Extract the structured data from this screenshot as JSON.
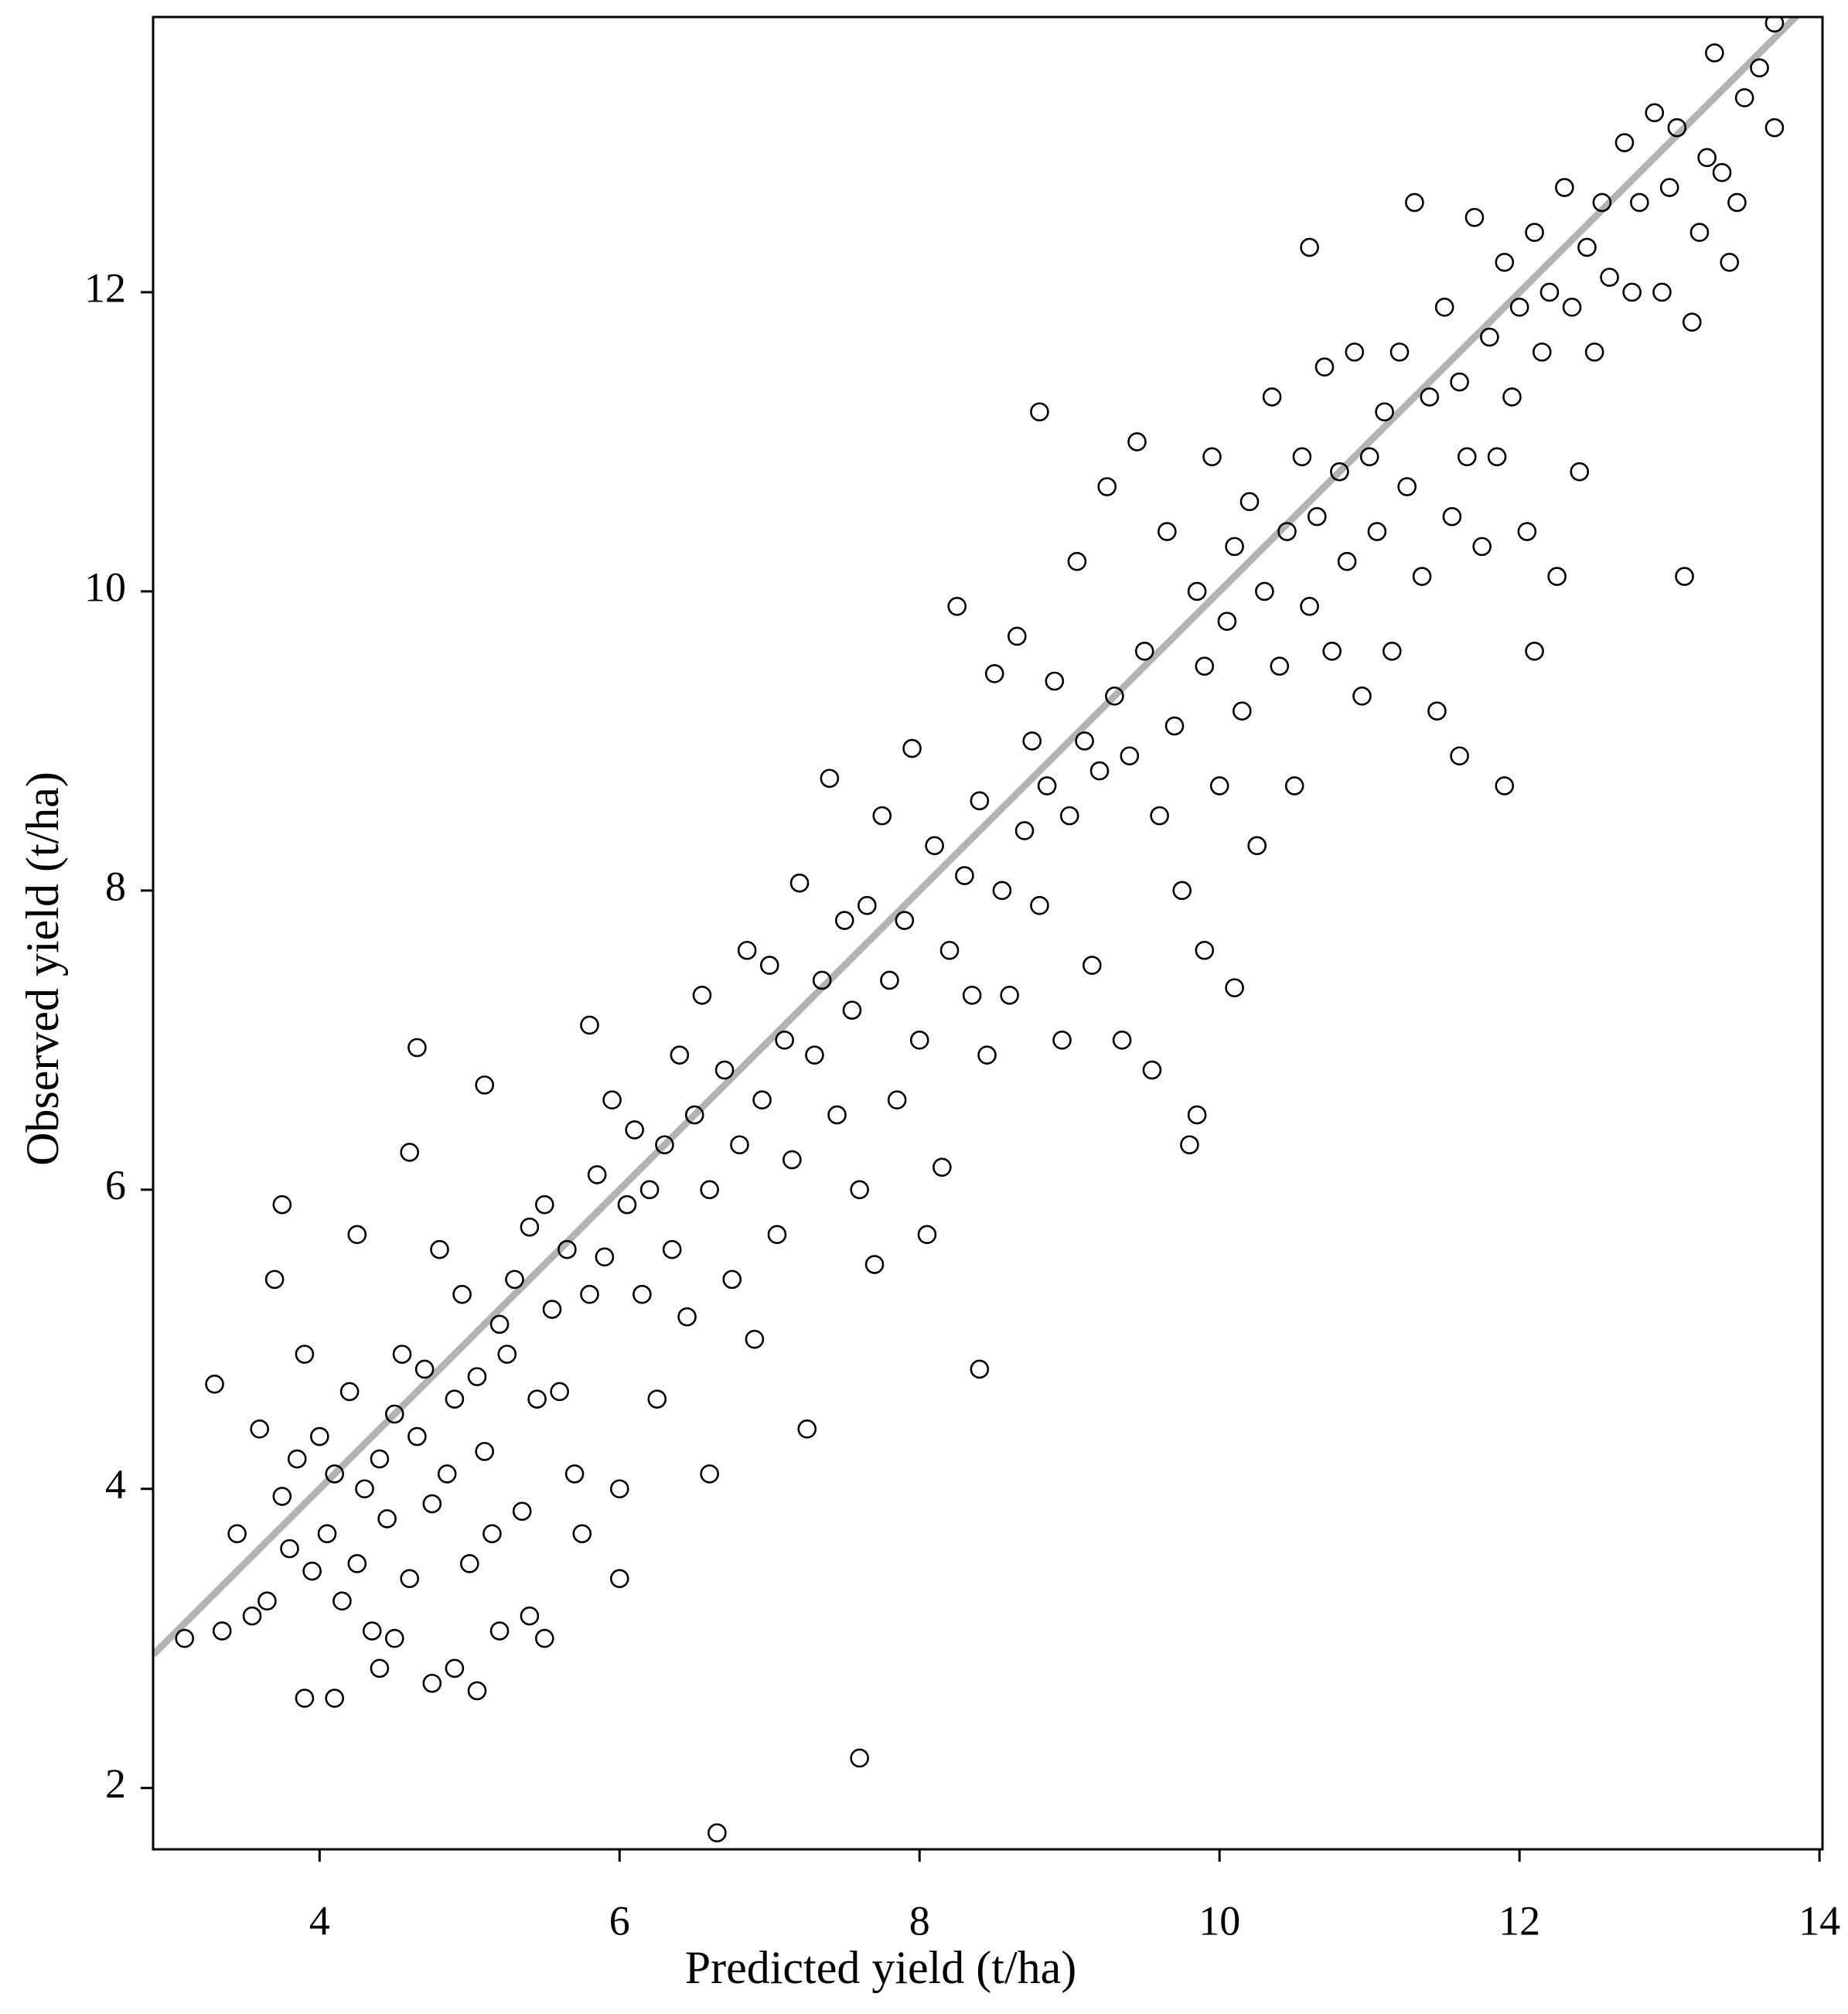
{
  "chart_data": {
    "type": "scatter",
    "x_label": "Predicted yield (t/ha)",
    "y_label": "Observed yield (t/ha)",
    "xlim": [
      2.89,
      14.02
    ],
    "ylim": [
      1.59,
      13.84
    ],
    "xticks": [
      4,
      6,
      8,
      10,
      12,
      14
    ],
    "yticks": [
      2,
      4,
      6,
      8,
      10,
      12
    ],
    "marker_color": "#000000",
    "fit_line": {
      "x": [
        2.89,
        14.02
      ],
      "y": [
        2.89,
        14.02
      ],
      "color": "#b3b3b3"
    },
    "x": [
      3.1,
      3.3,
      3.35,
      3.45,
      3.55,
      3.6,
      3.65,
      3.7,
      3.75,
      3.75,
      3.8,
      3.85,
      3.9,
      3.9,
      3.95,
      4.0,
      4.05,
      4.1,
      4.1,
      4.15,
      4.2,
      4.25,
      4.25,
      4.3,
      4.35,
      4.4,
      4.4,
      4.45,
      4.5,
      4.5,
      4.55,
      4.6,
      4.6,
      4.65,
      4.65,
      4.7,
      4.75,
      4.75,
      4.8,
      4.85,
      4.9,
      4.9,
      4.95,
      5.0,
      5.05,
      5.05,
      5.1,
      5.1,
      5.15,
      5.2,
      5.2,
      5.25,
      5.3,
      5.35,
      5.4,
      5.4,
      5.45,
      5.5,
      5.5,
      5.55,
      5.6,
      5.65,
      5.7,
      5.75,
      5.8,
      5.8,
      5.85,
      5.9,
      5.95,
      6.0,
      6.0,
      6.05,
      6.1,
      6.15,
      6.2,
      6.25,
      6.3,
      6.35,
      6.4,
      6.45,
      6.5,
      6.55,
      6.6,
      6.6,
      6.65,
      6.7,
      6.75,
      6.8,
      6.85,
      6.9,
      6.95,
      7.0,
      7.05,
      7.1,
      7.15,
      7.2,
      7.25,
      7.3,
      7.35,
      7.4,
      7.45,
      7.5,
      7.55,
      7.6,
      7.6,
      7.65,
      7.7,
      7.75,
      7.8,
      7.85,
      7.9,
      7.95,
      8.0,
      8.05,
      8.1,
      8.15,
      8.2,
      8.25,
      8.3,
      8.35,
      8.4,
      8.4,
      8.45,
      8.5,
      8.55,
      8.6,
      8.65,
      8.7,
      8.75,
      8.8,
      8.8,
      8.85,
      8.9,
      8.95,
      9.0,
      9.05,
      9.1,
      9.15,
      9.2,
      9.25,
      9.3,
      9.35,
      9.4,
      9.45,
      9.5,
      9.55,
      9.6,
      9.65,
      9.7,
      9.75,
      9.8,
      9.85,
      9.85,
      9.9,
      9.9,
      9.95,
      10.0,
      10.05,
      10.1,
      10.1,
      10.15,
      10.2,
      10.25,
      10.3,
      10.35,
      10.4,
      10.45,
      10.5,
      10.55,
      10.6,
      10.6,
      10.65,
      10.7,
      10.75,
      10.8,
      10.85,
      10.9,
      10.95,
      11.0,
      11.05,
      11.1,
      11.15,
      11.2,
      11.25,
      11.3,
      11.35,
      11.4,
      11.45,
      11.5,
      11.55,
      11.6,
      11.6,
      11.65,
      11.7,
      11.75,
      11.8,
      11.85,
      11.9,
      11.9,
      11.95,
      12.0,
      12.05,
      12.1,
      12.1,
      12.15,
      12.2,
      12.25,
      12.3,
      12.35,
      12.4,
      12.45,
      12.5,
      12.55,
      12.6,
      12.7,
      12.75,
      12.8,
      12.9,
      12.95,
      13.0,
      13.05,
      13.1,
      13.15,
      13.2,
      13.25,
      13.3,
      13.35,
      13.4,
      13.45,
      13.5,
      13.6,
      13.7,
      13.7
    ],
    "y": [
      3.0,
      4.7,
      3.05,
      3.7,
      3.15,
      4.4,
      3.25,
      5.4,
      5.9,
      3.95,
      3.6,
      4.2,
      2.6,
      4.9,
      3.45,
      4.35,
      3.7,
      2.6,
      4.1,
      3.25,
      4.65,
      3.5,
      5.7,
      4.0,
      3.05,
      2.8,
      4.2,
      3.8,
      4.5,
      3.0,
      4.9,
      6.25,
      3.4,
      6.95,
      4.35,
      4.8,
      2.7,
      3.9,
      5.6,
      4.1,
      2.8,
      4.6,
      5.3,
      3.5,
      2.65,
      4.75,
      6.7,
      4.25,
      3.7,
      5.1,
      3.05,
      4.9,
      5.4,
      3.85,
      5.75,
      3.15,
      4.6,
      5.9,
      3.0,
      5.2,
      4.65,
      5.6,
      4.1,
      3.7,
      7.1,
      5.3,
      6.1,
      5.55,
      6.6,
      3.4,
      4.0,
      5.9,
      6.4,
      5.3,
      6.0,
      4.6,
      6.3,
      5.6,
      6.9,
      5.15,
      6.5,
      7.3,
      4.1,
      6.0,
      1.7,
      6.8,
      5.4,
      6.3,
      7.6,
      5.0,
      6.6,
      7.5,
      5.7,
      7.0,
      6.2,
      8.05,
      4.4,
      6.9,
      7.4,
      8.75,
      6.5,
      7.8,
      7.2,
      2.2,
      6.0,
      7.9,
      5.5,
      8.5,
      7.4,
      6.6,
      7.8,
      8.95,
      7.0,
      5.7,
      8.3,
      6.15,
      7.6,
      9.9,
      8.1,
      7.3,
      4.8,
      8.6,
      6.9,
      9.45,
      8.0,
      7.3,
      9.7,
      8.4,
      9.0,
      11.2,
      7.9,
      8.7,
      9.4,
      7.0,
      8.5,
      10.2,
      9.0,
      7.5,
      8.8,
      10.7,
      9.3,
      7.0,
      8.9,
      11.0,
      9.6,
      6.8,
      8.5,
      10.4,
      9.1,
      8.0,
      6.3,
      6.5,
      10.0,
      7.6,
      9.5,
      10.9,
      8.7,
      9.8,
      7.35,
      10.3,
      9.2,
      10.6,
      8.3,
      10.0,
      11.3,
      9.5,
      10.4,
      8.7,
      10.9,
      12.3,
      9.9,
      10.5,
      11.5,
      9.6,
      10.8,
      10.2,
      11.6,
      9.3,
      10.9,
      10.4,
      11.2,
      9.6,
      11.6,
      10.7,
      12.6,
      10.1,
      11.3,
      9.2,
      11.9,
      10.5,
      8.9,
      11.4,
      10.9,
      12.5,
      10.3,
      11.7,
      10.9,
      8.7,
      12.2,
      11.3,
      11.9,
      10.4,
      9.6,
      12.4,
      11.6,
      12.0,
      10.1,
      12.7,
      11.9,
      10.8,
      12.3,
      11.6,
      12.6,
      12.1,
      13.0,
      12.0,
      12.6,
      13.2,
      12.0,
      12.7,
      13.1,
      10.1,
      11.8,
      12.4,
      12.9,
      13.6,
      12.8,
      12.2,
      12.6,
      13.3,
      13.5,
      13.1,
      13.8
    ]
  }
}
